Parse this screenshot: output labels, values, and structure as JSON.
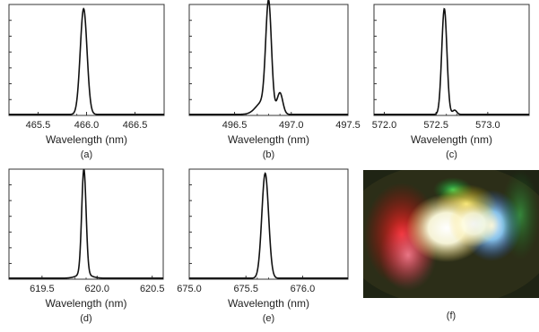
{
  "chart_data": [
    {
      "type": "line",
      "panel": "(a)",
      "xlabel": "Wavelength (nm)",
      "xlim": [
        465.2,
        466.8
      ],
      "xticks": [
        465.5,
        466.0,
        466.5
      ],
      "xtick_labels": [
        "465.5",
        "466.0",
        "466.5"
      ],
      "ylim": [
        0,
        1.05
      ],
      "peaks": [
        {
          "center": 465.97,
          "width": 0.035,
          "height": 1.0
        }
      ],
      "baseline": 0.01
    },
    {
      "type": "line",
      "panel": "(b)",
      "xlabel": "Wavelength (nm)",
      "xlim": [
        496.1,
        497.5
      ],
      "xticks": [
        496.5,
        497.0,
        497.5
      ],
      "xtick_labels": [
        "496.5",
        "497.0",
        "497.5"
      ],
      "ylim": [
        0,
        1.05
      ],
      "peaks": [
        {
          "center": 496.8,
          "width": 0.025,
          "height": 1.0
        },
        {
          "center": 496.9,
          "width": 0.025,
          "height": 0.2
        },
        {
          "center": 496.75,
          "width": 0.06,
          "height": 0.12
        }
      ],
      "baseline": 0.01
    },
    {
      "type": "line",
      "panel": "(c)",
      "xlabel": "Wavelength (nm)",
      "xlim": [
        571.9,
        573.4
      ],
      "xticks": [
        572.0,
        572.5,
        573.0
      ],
      "xtick_labels": [
        "572.0",
        "572.5",
        "573.0"
      ],
      "ylim": [
        0,
        1.05
      ],
      "peaks": [
        {
          "center": 572.58,
          "width": 0.025,
          "height": 1.0
        },
        {
          "center": 572.68,
          "width": 0.02,
          "height": 0.04
        }
      ],
      "baseline": 0.01
    },
    {
      "type": "line",
      "panel": "(d)",
      "xlabel": "Wavelength (nm)",
      "xlim": [
        619.2,
        620.6
      ],
      "xticks": [
        619.5,
        620.0,
        620.5
      ],
      "xtick_labels": [
        "619.5",
        "620.0",
        "620.5"
      ],
      "ylim": [
        0,
        1.05
      ],
      "peaks": [
        {
          "center": 619.88,
          "width": 0.02,
          "height": 1.0
        },
        {
          "center": 619.88,
          "width": 0.06,
          "height": 0.04
        }
      ],
      "baseline": 0.01
    },
    {
      "type": "line",
      "panel": "(e)",
      "xlabel": "Wavelength (nm)",
      "xlim": [
        675.0,
        676.4
      ],
      "xticks": [
        675.0,
        675.5,
        676.0
      ],
      "xtick_labels": [
        "675.0",
        "675.5",
        "676.0"
      ],
      "ylim": [
        0,
        1.05
      ],
      "peaks": [
        {
          "center": 675.67,
          "width": 0.03,
          "height": 1.0
        }
      ],
      "baseline": 0.01
    }
  ],
  "photo_label": "(f)"
}
